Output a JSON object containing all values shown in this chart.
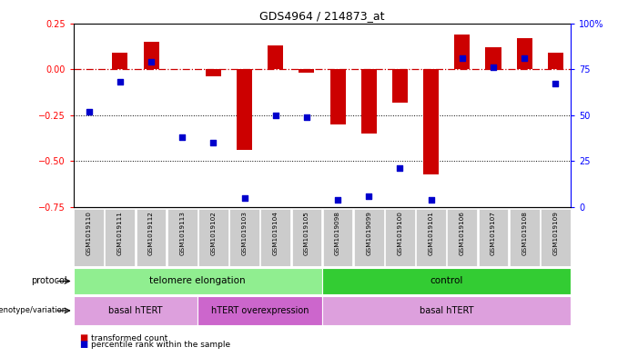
{
  "title": "GDS4964 / 214873_at",
  "samples": [
    "GSM1019110",
    "GSM1019111",
    "GSM1019112",
    "GSM1019113",
    "GSM1019102",
    "GSM1019103",
    "GSM1019104",
    "GSM1019105",
    "GSM1019098",
    "GSM1019099",
    "GSM1019100",
    "GSM1019101",
    "GSM1019106",
    "GSM1019107",
    "GSM1019108",
    "GSM1019109"
  ],
  "transformed_count": [
    0.0,
    0.09,
    0.15,
    0.0,
    -0.04,
    -0.44,
    0.13,
    -0.02,
    -0.3,
    -0.35,
    -0.18,
    -0.57,
    0.19,
    0.12,
    0.17,
    0.09
  ],
  "percentile_rank": [
    52,
    68,
    79,
    38,
    35,
    5,
    50,
    49,
    4,
    6,
    21,
    4,
    81,
    76,
    81,
    67
  ],
  "ylim_left": [
    -0.75,
    0.25
  ],
  "ylim_right": [
    0,
    100
  ],
  "left_ticks": [
    0.25,
    0.0,
    -0.25,
    -0.5,
    -0.75
  ],
  "right_ticks": [
    100,
    75,
    50,
    25,
    0
  ],
  "protocol_groups": [
    {
      "label": "telomere elongation",
      "start": 0,
      "end": 8,
      "color": "#90EE90"
    },
    {
      "label": "control",
      "start": 8,
      "end": 16,
      "color": "#33CC33"
    }
  ],
  "genotype_groups": [
    {
      "label": "basal hTERT",
      "start": 0,
      "end": 4,
      "color": "#DDA0DD"
    },
    {
      "label": "hTERT overexpression",
      "start": 4,
      "end": 8,
      "color": "#CC66CC"
    },
    {
      "label": "basal hTERT",
      "start": 8,
      "end": 16,
      "color": "#DDA0DD"
    }
  ],
  "bar_color": "#CC0000",
  "dot_color": "#0000CC",
  "hline_color": "#CC0000",
  "bg_color": "#ffffff",
  "label_bg": "#cccccc",
  "left_label_color": "red",
  "right_label_color": "blue"
}
